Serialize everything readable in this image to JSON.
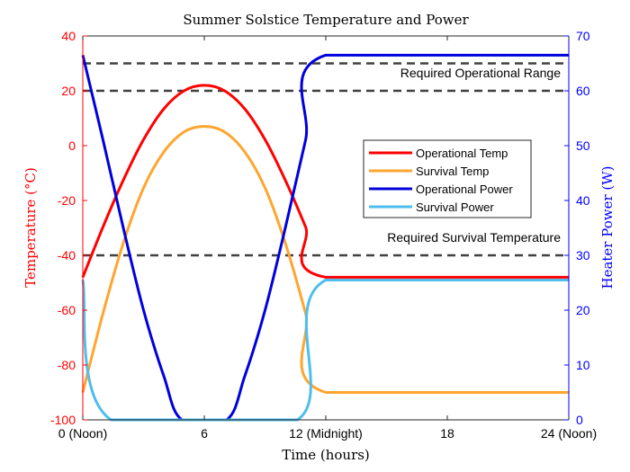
{
  "chart_data": {
    "type": "line",
    "title": "Summer Solstice Temperature and Power",
    "xlabel": "Time (hours)",
    "ylabel_left": "Temperature (°C)",
    "ylabel_right": "Heater Power (W)",
    "xlim": [
      0,
      24
    ],
    "ylim_left": [
      -100,
      40
    ],
    "ylim_right": [
      0,
      70
    ],
    "x_ticks": [
      {
        "value": 0,
        "label": "0 (Noon)"
      },
      {
        "value": 6,
        "label": "6"
      },
      {
        "value": 12,
        "label": "12 (Midnight)"
      },
      {
        "value": 18,
        "label": "18"
      },
      {
        "value": 24,
        "label": "24 (Noon)"
      }
    ],
    "y_left_ticks": [
      40,
      20,
      0,
      -20,
      -40,
      -60,
      -80,
      -100
    ],
    "y_right_ticks": [
      70,
      60,
      50,
      40,
      30,
      20,
      10,
      0
    ],
    "grid": false,
    "legend_position": "right-middle",
    "colors": {
      "left_axis": "#ff0000",
      "right_axis": "#0000ff",
      "reference": "#404040"
    },
    "series": [
      {
        "name": "Operational Temp",
        "axis": "left",
        "color": "#ff0000",
        "points": [
          [
            0,
            -48
          ],
          [
            1,
            -29.6
          ],
          [
            2,
            -12.6
          ],
          [
            3,
            2.2
          ],
          [
            4,
            13.4
          ],
          [
            5,
            20
          ],
          [
            6,
            22
          ],
          [
            7,
            20
          ],
          [
            8,
            13.4
          ],
          [
            9,
            2.2
          ],
          [
            10,
            -12.6
          ],
          [
            11,
            -29.6
          ],
          [
            12,
            -48
          ],
          [
            24,
            -48
          ]
        ]
      },
      {
        "name": "Survival Temp",
        "axis": "left",
        "color": "#ffa530",
        "points": [
          [
            0,
            -90
          ],
          [
            1,
            -61.1
          ],
          [
            2,
            -35.5
          ],
          [
            3,
            -15.4
          ],
          [
            4,
            -2.3
          ],
          [
            5,
            5
          ],
          [
            6,
            7
          ],
          [
            7,
            5
          ],
          [
            8,
            -2.3
          ],
          [
            9,
            -15.4
          ],
          [
            10,
            -35.5
          ],
          [
            11,
            -61.1
          ],
          [
            12,
            -90
          ],
          [
            24,
            -90
          ]
        ]
      },
      {
        "name": "Operational Power",
        "axis": "right",
        "color": "#0000dd",
        "points": [
          [
            0,
            66.5
          ],
          [
            1,
            51
          ],
          [
            2,
            35
          ],
          [
            3,
            20
          ],
          [
            4,
            8
          ],
          [
            4.9,
            0
          ],
          [
            7.1,
            0
          ],
          [
            8,
            8
          ],
          [
            9,
            20
          ],
          [
            10,
            35
          ],
          [
            11,
            51
          ],
          [
            12,
            66.5
          ],
          [
            24,
            66.5
          ]
        ]
      },
      {
        "name": "Survival Power",
        "axis": "right",
        "color": "#4dbeee",
        "points": [
          [
            0,
            25.5
          ],
          [
            1.4,
            0
          ],
          [
            10.6,
            0
          ],
          [
            12,
            25.5
          ],
          [
            24,
            25.5
          ]
        ]
      }
    ],
    "reference_lines": [
      {
        "axis": "left",
        "value": 30
      },
      {
        "axis": "left",
        "value": 20
      },
      {
        "axis": "left",
        "value": -40
      }
    ],
    "annotations": [
      {
        "text": "Required Operational Range",
        "x": 23.6,
        "y": 25
      },
      {
        "text": "Required Survival Temperature",
        "x": 23.6,
        "y": -35
      }
    ]
  }
}
